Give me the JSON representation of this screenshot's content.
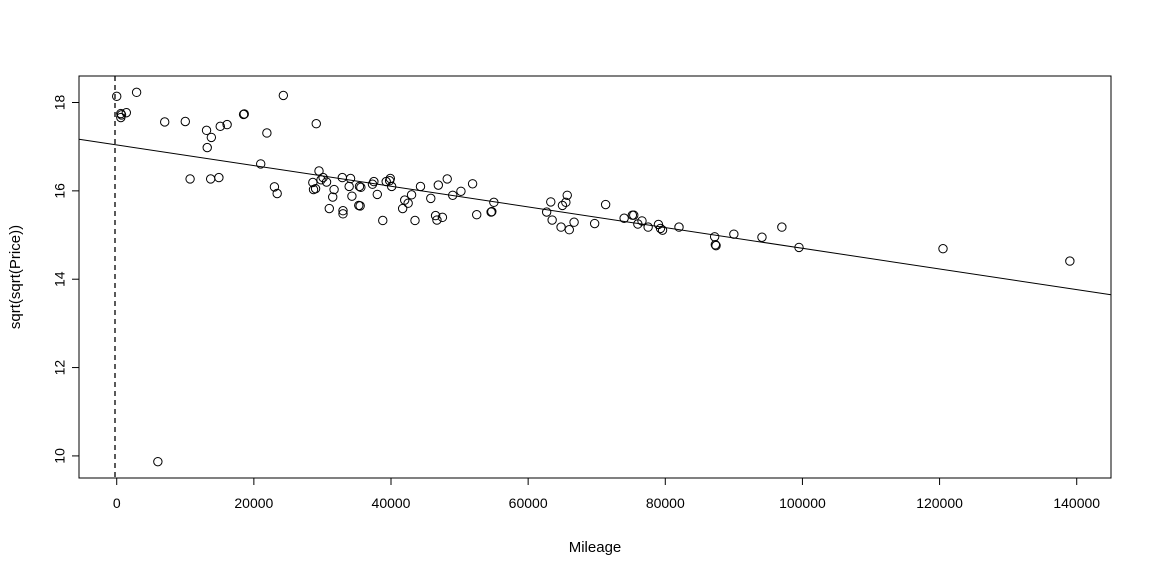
{
  "chart_data": {
    "type": "scatter",
    "title": "",
    "xlabel": "Mileage",
    "ylabel": "sqrt(sqrt(Price))",
    "xlim": [
      -5500,
      145000
    ],
    "ylim": [
      9.5,
      18.6
    ],
    "xticks": [
      0,
      20000,
      40000,
      60000,
      80000,
      100000,
      120000,
      140000
    ],
    "xtick_labels": [
      "0",
      "20000",
      "40000",
      "60000",
      "80000",
      "100000",
      "120000",
      "140000"
    ],
    "yticks": [
      10,
      12,
      14,
      16,
      18
    ],
    "ytick_labels": [
      "10",
      "12",
      "14",
      "16",
      "18"
    ],
    "grid": false,
    "vline": {
      "x": -250,
      "style": "dashed"
    },
    "fit_line": {
      "intercept": 17.04,
      "slope": -2.34e-05
    },
    "points": [
      [
        0,
        18.14
      ],
      [
        600,
        17.75
      ],
      [
        600,
        17.66
      ],
      [
        700,
        17.72
      ],
      [
        1400,
        17.77
      ],
      [
        2900,
        18.23
      ],
      [
        6000,
        9.87
      ],
      [
        7000,
        17.56
      ],
      [
        10000,
        17.57
      ],
      [
        10700,
        16.27
      ],
      [
        13100,
        17.37
      ],
      [
        13200,
        16.98
      ],
      [
        13700,
        16.27
      ],
      [
        13800,
        17.21
      ],
      [
        14900,
        16.3
      ],
      [
        15100,
        17.46
      ],
      [
        16100,
        17.5
      ],
      [
        18500,
        17.73
      ],
      [
        18600,
        17.74
      ],
      [
        21000,
        16.61
      ],
      [
        21900,
        17.31
      ],
      [
        23000,
        16.09
      ],
      [
        23400,
        15.94
      ],
      [
        24300,
        18.16
      ],
      [
        28600,
        16.19
      ],
      [
        28700,
        16.03
      ],
      [
        29000,
        16.05
      ],
      [
        29100,
        17.52
      ],
      [
        29500,
        16.45
      ],
      [
        29800,
        16.25
      ],
      [
        30100,
        16.3
      ],
      [
        30600,
        16.2
      ],
      [
        31000,
        15.6
      ],
      [
        31500,
        15.86
      ],
      [
        31700,
        16.03
      ],
      [
        32900,
        16.3
      ],
      [
        33000,
        15.48
      ],
      [
        33000,
        15.55
      ],
      [
        33900,
        16.1
      ],
      [
        34100,
        16.28
      ],
      [
        34300,
        15.88
      ],
      [
        35300,
        15.67
      ],
      [
        35400,
        16.1
      ],
      [
        35500,
        15.66
      ],
      [
        35600,
        16.08
      ],
      [
        37300,
        16.15
      ],
      [
        37500,
        16.21
      ],
      [
        38000,
        15.92
      ],
      [
        38800,
        15.33
      ],
      [
        39300,
        16.21
      ],
      [
        39800,
        16.23
      ],
      [
        39900,
        16.28
      ],
      [
        40100,
        16.1
      ],
      [
        41700,
        15.6
      ],
      [
        42000,
        15.79
      ],
      [
        42500,
        15.72
      ],
      [
        43000,
        15.91
      ],
      [
        43500,
        15.33
      ],
      [
        44300,
        16.1
      ],
      [
        45800,
        15.83
      ],
      [
        46500,
        15.44
      ],
      [
        46700,
        15.34
      ],
      [
        46900,
        16.13
      ],
      [
        47500,
        15.4
      ],
      [
        48200,
        16.27
      ],
      [
        49000,
        15.9
      ],
      [
        50200,
        15.99
      ],
      [
        51900,
        16.16
      ],
      [
        52500,
        15.46
      ],
      [
        54600,
        15.52
      ],
      [
        54700,
        15.53
      ],
      [
        55000,
        15.74
      ],
      [
        62700,
        15.52
      ],
      [
        63300,
        15.75
      ],
      [
        63500,
        15.34
      ],
      [
        64800,
        15.18
      ],
      [
        65000,
        15.67
      ],
      [
        65500,
        15.74
      ],
      [
        65700,
        15.9
      ],
      [
        66000,
        15.12
      ],
      [
        66700,
        15.29
      ],
      [
        69700,
        15.26
      ],
      [
        71300,
        15.69
      ],
      [
        74000,
        15.38
      ],
      [
        75200,
        15.45
      ],
      [
        75400,
        15.45
      ],
      [
        76000,
        15.25
      ],
      [
        76600,
        15.32
      ],
      [
        77500,
        15.18
      ],
      [
        79000,
        15.24
      ],
      [
        79300,
        15.15
      ],
      [
        79600,
        15.11
      ],
      [
        82000,
        15.18
      ],
      [
        87200,
        14.96
      ],
      [
        87300,
        14.78
      ],
      [
        87400,
        14.76
      ],
      [
        90000,
        15.02
      ],
      [
        94100,
        14.95
      ],
      [
        97000,
        15.18
      ],
      [
        99500,
        14.72
      ],
      [
        120500,
        14.69
      ],
      [
        139000,
        14.41
      ]
    ]
  }
}
